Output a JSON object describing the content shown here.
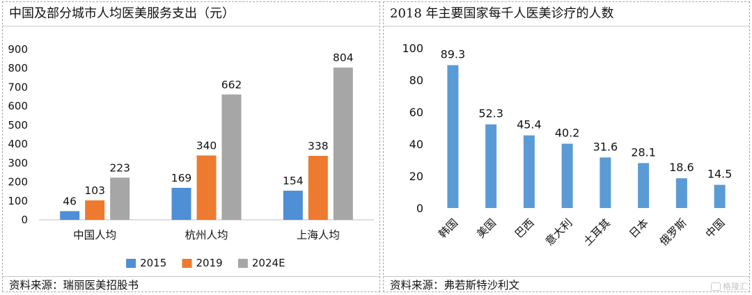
{
  "left_panel": {
    "title": "中国及部分城市人均医美服务支出（元）",
    "source": "资料来源：瑞丽医美招股书"
  },
  "right_panel": {
    "title": "2018 年主要国家每千人医美诊疗的人数",
    "source": "资料来源：弗若斯特沙利文"
  },
  "watermark": {
    "text": "格隆汇",
    "icon": "logo-icon"
  },
  "chart_data": [
    {
      "type": "bar",
      "title": "中国及部分城市人均医美服务支出（元）",
      "categories": [
        "中国人均",
        "杭州人均",
        "上海人均"
      ],
      "series": [
        {
          "name": "2015",
          "values": [
            46,
            169,
            154
          ],
          "color": "#4e8fd5"
        },
        {
          "name": "2019",
          "values": [
            103,
            340,
            338
          ],
          "color": "#ee7a30"
        },
        {
          "name": "2024E",
          "values": [
            223,
            662,
            804
          ],
          "color": "#a6a6a6"
        }
      ],
      "ylim": [
        0,
        900
      ],
      "yticks": [
        0,
        100,
        200,
        300,
        400,
        500,
        600,
        700,
        800,
        900
      ],
      "grid": false,
      "legend": "bottom"
    },
    {
      "type": "bar",
      "title": "2018 年主要国家每千人医美诊疗的人数",
      "categories": [
        "韩国",
        "美国",
        "巴西",
        "意大利",
        "土耳其",
        "日本",
        "俄罗斯",
        "中国"
      ],
      "values": [
        89.3,
        52.3,
        45.4,
        40.2,
        31.6,
        28.1,
        18.6,
        14.5
      ],
      "value_labels": [
        "89.3",
        "52.3",
        "45.4",
        "40.2",
        "31.6",
        "28.1",
        "18.6",
        "14.5"
      ],
      "color": "#5b9bd5",
      "ylim": [
        0,
        100
      ],
      "yticks": [
        0,
        20,
        40,
        60,
        80,
        100
      ],
      "grid": false,
      "legend": "none"
    }
  ]
}
